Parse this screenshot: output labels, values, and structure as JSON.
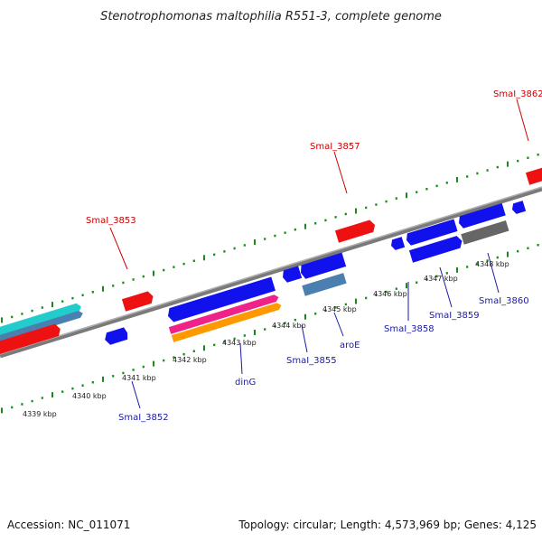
{
  "title": "Stenotrophomonas maltophilia R551-3, complete genome",
  "footer": {
    "accession": "Accession: NC_011071",
    "topology": "Topology: circular; Length: 4,573,969 bp; Genes: 4,125"
  },
  "colors": {
    "backbone": "#8a8a8a",
    "tick": "#1a8a1a",
    "red_gene": "#ee1111",
    "blue_gene": "#1111ee",
    "steel_gene": "#4a7fb0",
    "cyan_gene": "#22cccc",
    "magenta_gene": "#ee2288",
    "orange_gene": "#ff9900",
    "gray_gene": "#666666",
    "red_label": "#cc0000",
    "blue_label": "#1a1aa8"
  },
  "scale_labels": [
    "4339 kbp",
    "4340 kbp",
    "4341 kbp",
    "4342 kbp",
    "4343 kbp",
    "4344 kbp",
    "4345 kbp",
    "4346 kbp",
    "4347 kbp",
    "4348 kbp"
  ],
  "gene_labels_top": [
    "SmaI_3853",
    "SmaI_3857",
    "SmaI_3862"
  ],
  "gene_labels_bottom": [
    "SmaI_3852",
    "dinG",
    "SmaI_3855",
    "aroE",
    "SmaI_3858",
    "SmaI_3859",
    "SmaI_3860"
  ]
}
